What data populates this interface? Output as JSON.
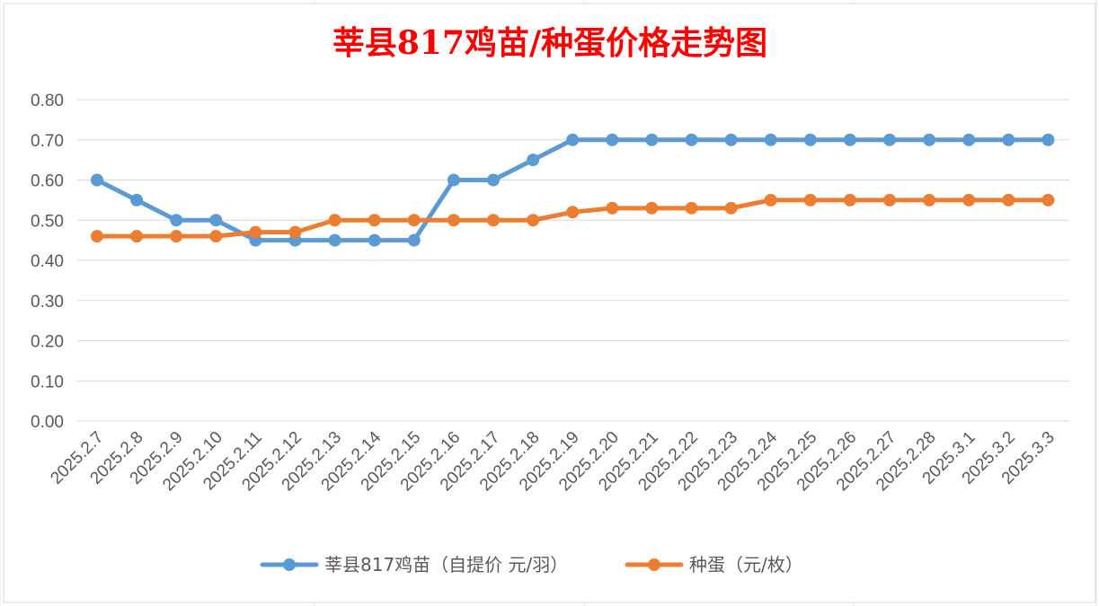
{
  "chart_data": {
    "type": "line",
    "title": "莘县817鸡苗/种蛋价格走势图",
    "categories": [
      "2025.2.7",
      "2025.2.8",
      "2025.2.9",
      "2025.2.10",
      "2025.2.11",
      "2025.2.12",
      "2025.2.13",
      "2025.2.14",
      "2025.2.15",
      "2025.2.16",
      "2025.2.17",
      "2025.2.18",
      "2025.2.19",
      "2025.2.20",
      "2025.2.21",
      "2025.2.22",
      "2025.2.23",
      "2025.2.24",
      "2025.2.25",
      "2025.2.26",
      "2025.2.27",
      "2025.2.28",
      "2025.3.1",
      "2025.3.2",
      "2025.3.3"
    ],
    "series": [
      {
        "name": "莘县817鸡苗（自提价 元/羽）",
        "color": "#5b9bd5",
        "values": [
          0.6,
          0.55,
          0.5,
          0.5,
          0.45,
          0.45,
          0.45,
          0.45,
          0.45,
          0.6,
          0.6,
          0.65,
          0.7,
          0.7,
          0.7,
          0.7,
          0.7,
          0.7,
          0.7,
          0.7,
          0.7,
          0.7,
          0.7,
          0.7,
          0.7
        ]
      },
      {
        "name": "种蛋（元/枚）",
        "color": "#ed7d31",
        "values": [
          0.46,
          0.46,
          0.46,
          0.46,
          0.47,
          0.47,
          0.5,
          0.5,
          0.5,
          0.5,
          0.5,
          0.5,
          0.52,
          0.53,
          0.53,
          0.53,
          0.53,
          0.55,
          0.55,
          0.55,
          0.55,
          0.55,
          0.55,
          0.55,
          0.55
        ]
      }
    ],
    "ylim": [
      0,
      0.8
    ],
    "yticks": [
      "0.00",
      "0.10",
      "0.20",
      "0.30",
      "0.40",
      "0.50",
      "0.60",
      "0.70",
      "0.80"
    ],
    "grid": true,
    "legend_position": "bottom"
  }
}
